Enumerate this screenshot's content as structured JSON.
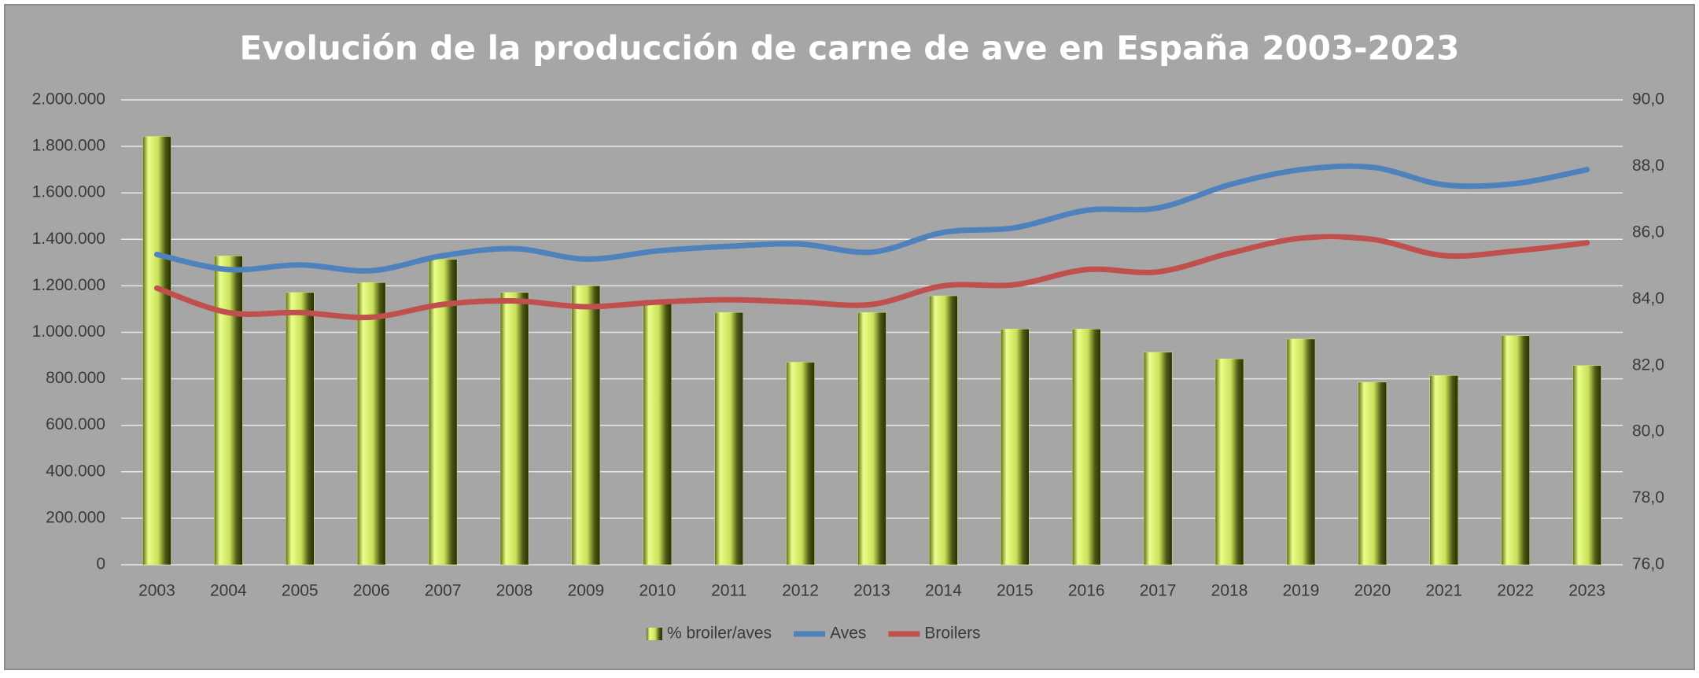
{
  "chart_data": {
    "type": "combo",
    "title": "Evolución de la producción de carne de ave en España 2003-2023",
    "categories": [
      "2003",
      "2004",
      "2005",
      "2006",
      "2007",
      "2008",
      "2009",
      "2010",
      "2011",
      "2012",
      "2013",
      "2014",
      "2015",
      "2016",
      "2017",
      "2018",
      "2019",
      "2020",
      "2021",
      "2022",
      "2023"
    ],
    "series": [
      {
        "name": "% broiler/aves",
        "type": "bar",
        "axis": "y2",
        "color": "#d9f06a",
        "values": [
          88.9,
          85.3,
          84.2,
          84.5,
          85.2,
          84.2,
          84.4,
          83.9,
          83.6,
          82.1,
          83.6,
          84.1,
          83.1,
          83.1,
          82.4,
          82.2,
          82.8,
          81.5,
          81.7,
          82.9,
          82.0
        ]
      },
      {
        "name": "Aves",
        "type": "line",
        "color": "#4f81bd",
        "values": [
          1335000,
          1270000,
          1290000,
          1265000,
          1330000,
          1360000,
          1315000,
          1350000,
          1370000,
          1380000,
          1345000,
          1430000,
          1450000,
          1525000,
          1535000,
          1635000,
          1700000,
          1710000,
          1635000,
          1640000,
          1700000
        ]
      },
      {
        "name": "Broilers",
        "type": "line",
        "color": "#c0504d",
        "values": [
          1190000,
          1085000,
          1085000,
          1065000,
          1120000,
          1135000,
          1110000,
          1130000,
          1140000,
          1130000,
          1120000,
          1200000,
          1205000,
          1270000,
          1260000,
          1340000,
          1405000,
          1400000,
          1330000,
          1350000,
          1385000
        ]
      }
    ],
    "ylim": [
      0,
      2000000
    ],
    "yticks": [
      0,
      {
        "value": 200000,
        "label": "200.000"
      },
      {
        "value": 400000,
        "label": "400.000"
      },
      {
        "value": 600000,
        "label": "600.000"
      },
      {
        "value": 800000,
        "label": "800.000"
      },
      {
        "value": 1000000,
        "label": "1.000.000"
      },
      {
        "value": 1200000,
        "label": "1.200.000"
      },
      {
        "value": 1400000,
        "label": "1.400.000"
      },
      {
        "value": 1600000,
        "label": "1.600.000"
      },
      {
        "value": 1800000,
        "label": "1.800.000"
      },
      {
        "value": 2000000,
        "label": "2.000.000"
      }
    ],
    "y2lim": [
      76,
      90
    ],
    "y2ticks": [
      {
        "value": 76,
        "label": "76,0"
      },
      {
        "value": 78,
        "label": "78,0"
      },
      {
        "value": 80,
        "label": "80,0"
      },
      {
        "value": 82,
        "label": "82,0"
      },
      {
        "value": 84,
        "label": "84,0"
      },
      {
        "value": 86,
        "label": "86,0"
      },
      {
        "value": 88,
        "label": "88,0"
      },
      {
        "value": 90,
        "label": "90,0"
      }
    ],
    "grid": true,
    "legend": "bottom"
  }
}
